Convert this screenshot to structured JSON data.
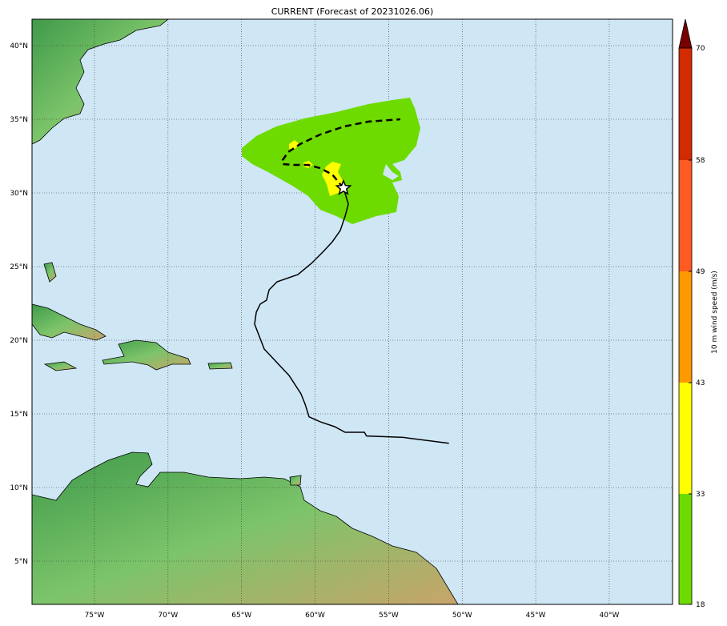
{
  "title": "CURRENT (Forecast of 20231026.06)",
  "map": {
    "lon_range": [
      -79.25,
      -35.7
    ],
    "lat_range": [
      2.07,
      41.8
    ],
    "ocean_color": "#cfe6f5",
    "lon_ticks": [
      {
        "v": -75,
        "label": "75°W"
      },
      {
        "v": -70,
        "label": "70°W"
      },
      {
        "v": -65,
        "label": "65°W"
      },
      {
        "v": -60,
        "label": "60°W"
      },
      {
        "v": -55,
        "label": "55°W"
      },
      {
        "v": -50,
        "label": "50°W"
      },
      {
        "v": -45,
        "label": "45°W"
      },
      {
        "v": -40,
        "label": "40°W"
      }
    ],
    "lat_ticks": [
      {
        "v": 5,
        "label": "5°N"
      },
      {
        "v": 10,
        "label": "10°N"
      },
      {
        "v": 15,
        "label": "15°N"
      },
      {
        "v": 20,
        "label": "20°N"
      },
      {
        "v": 25,
        "label": "25°N"
      },
      {
        "v": 30,
        "label": "30°N"
      },
      {
        "v": 35,
        "label": "35°N"
      },
      {
        "v": 40,
        "label": "40°N"
      }
    ],
    "observed_track": [
      [
        -50.9,
        13.0
      ],
      [
        -54.0,
        13.4
      ],
      [
        -56.5,
        13.5
      ],
      [
        -56.65,
        13.75
      ],
      [
        -57.96,
        13.75
      ],
      [
        -58.67,
        14.13
      ],
      [
        -59.65,
        14.46
      ],
      [
        -60.41,
        14.8
      ],
      [
        -60.68,
        15.65
      ],
      [
        -60.96,
        16.36
      ],
      [
        -61.77,
        17.61
      ],
      [
        -63.46,
        19.4
      ],
      [
        -64.11,
        21.09
      ],
      [
        -64.0,
        21.9
      ],
      [
        -63.73,
        22.45
      ],
      [
        -63.3,
        22.72
      ],
      [
        -63.13,
        23.42
      ],
      [
        -62.59,
        23.97
      ],
      [
        -61.17,
        24.46
      ],
      [
        -60.25,
        25.22
      ],
      [
        -59.43,
        26.03
      ],
      [
        -58.83,
        26.68
      ],
      [
        -58.29,
        27.45
      ],
      [
        -57.96,
        28.42
      ],
      [
        -57.74,
        29.24
      ],
      [
        -58.07,
        30.33
      ]
    ],
    "forecast_track": [
      [
        -58.07,
        30.33
      ],
      [
        -58.83,
        31.25
      ],
      [
        -59.65,
        31.68
      ],
      [
        -60.47,
        31.9
      ],
      [
        -61.55,
        31.9
      ],
      [
        -62.21,
        31.96
      ],
      [
        -62.21,
        32.23
      ],
      [
        -61.83,
        32.77
      ],
      [
        -61.01,
        33.32
      ],
      [
        -59.65,
        33.97
      ],
      [
        -58.02,
        34.51
      ],
      [
        -56.38,
        34.84
      ],
      [
        -54.21,
        35.0
      ]
    ],
    "current_position": [
      -58.07,
      30.33
    ]
  },
  "colorbar": {
    "label": "10 m wind speed (m/s)",
    "levels": [
      {
        "from": 18,
        "to": 33,
        "color": "#6ddb00"
      },
      {
        "from": 33,
        "to": 43,
        "color": "#ffff00"
      },
      {
        "from": 43,
        "to": 49,
        "color": "#ff9900"
      },
      {
        "from": 49,
        "to": 58,
        "color": "#ff5a22"
      },
      {
        "from": 58,
        "to": 70,
        "color": "#d42a00"
      }
    ],
    "extend_color": "#7a0000",
    "tick_labels": [
      "18",
      "33",
      "43",
      "49",
      "58",
      "70"
    ]
  }
}
